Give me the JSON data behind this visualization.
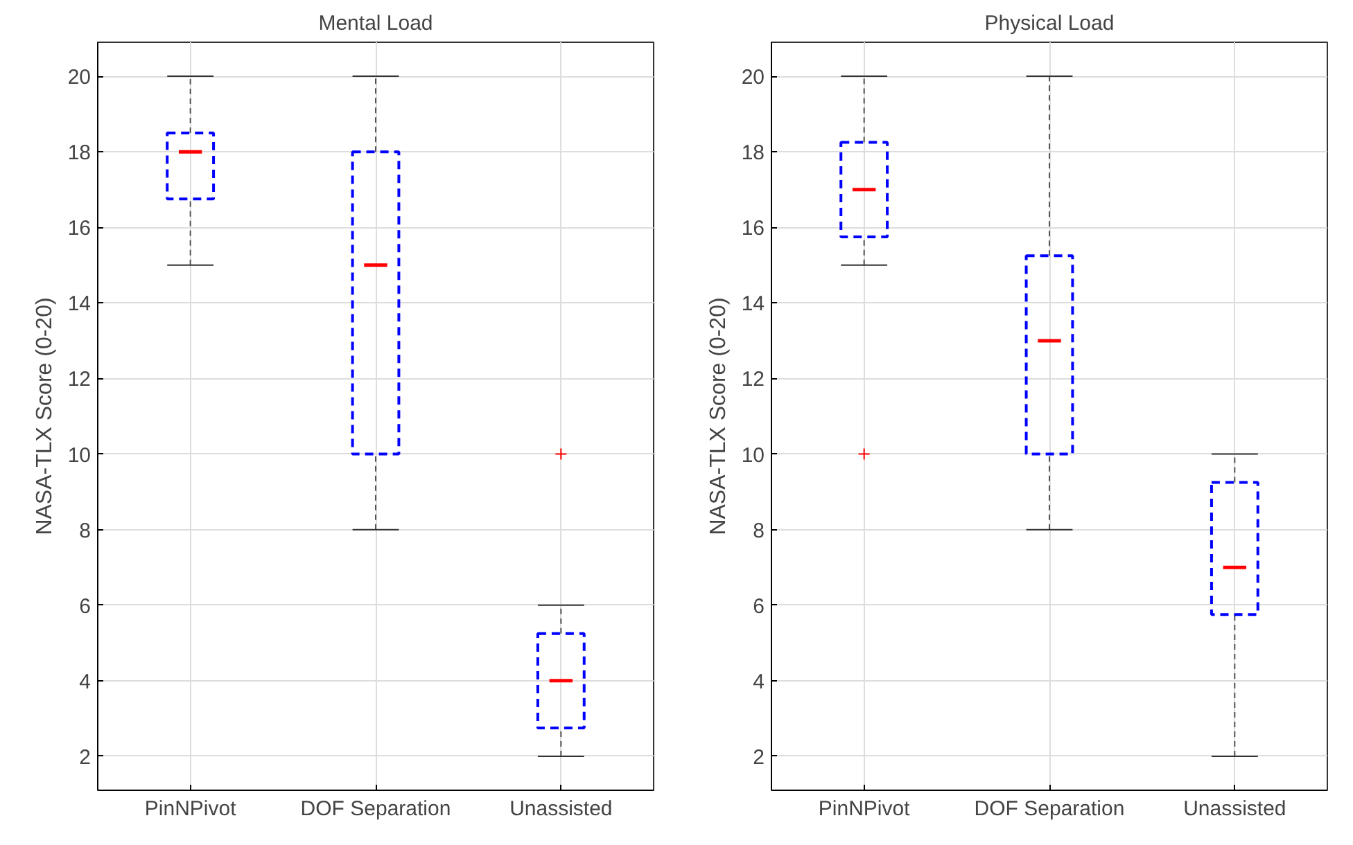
{
  "chart_data": [
    {
      "type": "box",
      "title": "Mental Load",
      "ylabel": "NASA-TLX Score (0-20)",
      "categories": [
        "PinNPivot",
        "DOF Separation",
        "Unassisted"
      ],
      "ylim": [
        1.1,
        20.9
      ],
      "yticks": [
        2,
        4,
        6,
        8,
        10,
        12,
        14,
        16,
        18,
        20
      ],
      "grid": true,
      "series": [
        {
          "color": "#0000ff",
          "boxes": [
            {
              "low": 15,
              "q1": 16.75,
              "median": 18,
              "q3": 18.5,
              "high": 20
            },
            {
              "low": 8,
              "q1": 10,
              "median": 15,
              "q3": 18,
              "high": 20
            },
            {
              "low": 2,
              "q1": 2.75,
              "median": 4,
              "q3": 5.25,
              "high": 6,
              "outliers": [
                10
              ]
            }
          ]
        }
      ]
    },
    {
      "type": "box",
      "title": "Physical Load",
      "ylabel": "NASA-TLX Score (0-20)",
      "categories": [
        "PinNPivot",
        "DOF Separation",
        "Unassisted"
      ],
      "ylim": [
        1.1,
        20.9
      ],
      "yticks": [
        2,
        4,
        6,
        8,
        10,
        12,
        14,
        16,
        18,
        20
      ],
      "grid": true,
      "series": [
        {
          "color": "#0000ff",
          "boxes": [
            {
              "low": 15,
              "q1": 15.75,
              "median": 17,
              "q3": 18.25,
              "high": 20,
              "outliers": [
                10
              ]
            },
            {
              "low": 8,
              "q1": 10,
              "median": 13,
              "q3": 15.25,
              "high": 20
            },
            {
              "low": 2,
              "q1": 5.75,
              "median": 7,
              "q3": 9.25,
              "high": 10
            }
          ]
        }
      ]
    }
  ]
}
